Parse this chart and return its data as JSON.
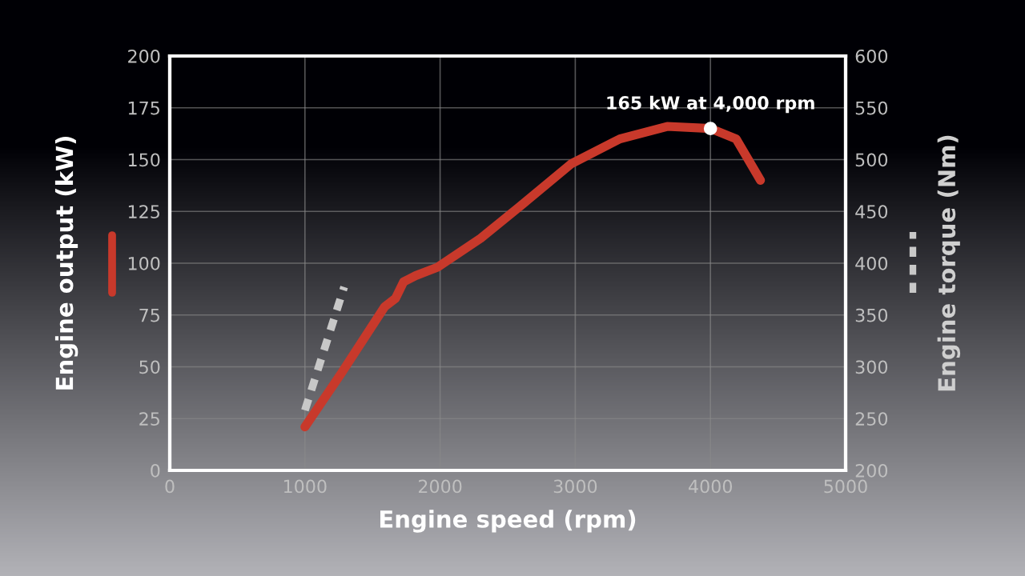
{
  "chart_data": {
    "type": "line",
    "xlabel": "Engine speed (rpm)",
    "ylabel": "Engine output (kW)",
    "y2label": "Engine torque (Nm)",
    "x": [
      1000,
      1270,
      1590,
      1670,
      1730,
      1820,
      1980,
      2300,
      2620,
      2970,
      3330,
      3680,
      4000,
      4190,
      4370
    ],
    "series": [
      {
        "color": "#c8392b",
        "line_style": "solid",
        "values": [
          21,
          47,
          79,
          83,
          91,
          94,
          98,
          112,
          129,
          148,
          160,
          166,
          165,
          160,
          140
        ]
      },
      {
        "color": "#c8c8c8",
        "line_style": "dashed",
        "axis": "y2",
        "x": [
          1000,
          1290
        ],
        "values": [
          258,
          377
        ]
      }
    ],
    "xlim": [
      0,
      5000
    ],
    "xticks": [
      0,
      1000,
      2000,
      3000,
      4000,
      5000
    ],
    "ylim": [
      0,
      200
    ],
    "yticks": [
      0,
      25,
      50,
      75,
      100,
      125,
      150,
      175,
      200
    ],
    "y2lim": [
      200,
      600
    ],
    "y2ticks": [
      200,
      250,
      300,
      350,
      400,
      450,
      500,
      550,
      600
    ],
    "grid": true,
    "legend": false,
    "annotations": [
      {
        "text": "165 kW at 4,000 rpm",
        "x": 4000,
        "y": 165
      }
    ]
  }
}
